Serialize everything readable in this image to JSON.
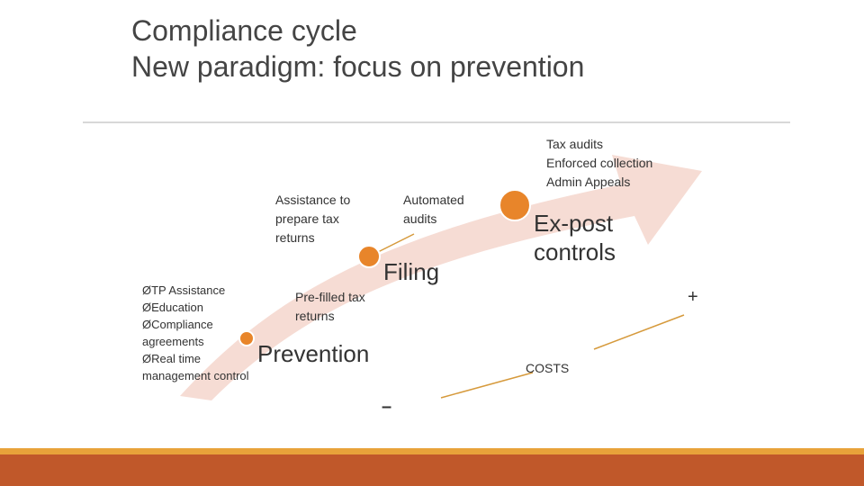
{
  "title": [
    "Compliance cycle",
    "New paradigm: focus on prevention"
  ],
  "labels": {
    "tax_audits": [
      "Tax audits",
      "Enforced collection",
      "Admin Appeals"
    ],
    "assistance": [
      "Assistance to",
      "prepare tax",
      "returns"
    ],
    "automated": [
      "Automated",
      "audits"
    ],
    "ex_post": [
      "Ex-post",
      "controls"
    ],
    "filing": "Filing",
    "prefilled": [
      "Pre-filled tax",
      "returns"
    ],
    "prevention": "Prevention",
    "list": [
      "ØTP Assistance",
      "ØEducation",
      "ØCompliance",
      "agreements",
      "ØReal time",
      "management control"
    ],
    "plus": "+",
    "minus": "–",
    "costs": "COSTS"
  }
}
